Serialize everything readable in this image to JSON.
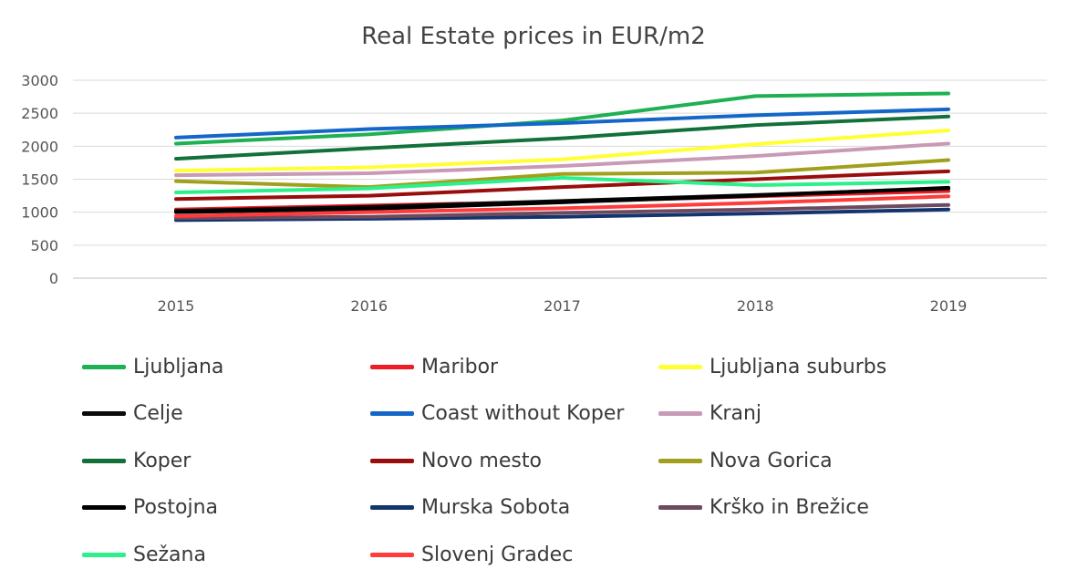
{
  "chart_data": {
    "type": "line",
    "title": "Real Estate prices in EUR/m2",
    "xlabel": "",
    "ylabel": "",
    "categories": [
      "2015",
      "2016",
      "2017",
      "2018",
      "2019"
    ],
    "ylim": [
      0,
      3000
    ],
    "yticks": [
      "3000",
      "2500",
      "2000",
      "1500",
      "1000",
      "500",
      "0"
    ],
    "grid": true,
    "legend_position": "bottom",
    "series": [
      {
        "name": "Ljubljana",
        "color": "#1eb052",
        "values": [
          2040,
          2180,
          2390,
          2760,
          2800
        ]
      },
      {
        "name": "Maribor",
        "color": "#ee1c24",
        "values": [
          1040,
          1100,
          1160,
          1240,
          1320
        ]
      },
      {
        "name": "Ljubljana suburbs",
        "color": "#ffff33",
        "values": [
          1630,
          1680,
          1800,
          2030,
          2240
        ]
      },
      {
        "name": "Celje",
        "color": "#0a0a0a",
        "values": [
          1020,
          1080,
          1170,
          1260,
          1360
        ]
      },
      {
        "name": "Coast without Koper",
        "color": "#1467c8",
        "values": [
          2130,
          2260,
          2350,
          2470,
          2560
        ]
      },
      {
        "name": "Kranj",
        "color": "#c89ab5",
        "values": [
          1560,
          1590,
          1700,
          1850,
          2040
        ]
      },
      {
        "name": "Koper",
        "color": "#12703a",
        "values": [
          1810,
          1970,
          2120,
          2320,
          2450
        ]
      },
      {
        "name": "Novo mesto",
        "color": "#9a0d0d",
        "values": [
          1200,
          1250,
          1380,
          1500,
          1620
        ]
      },
      {
        "name": "Nova Gorica",
        "color": "#a0a01c",
        "values": [
          1470,
          1380,
          1580,
          1600,
          1790
        ]
      },
      {
        "name": "Postojna",
        "color": "#000000",
        "values": [
          1000,
          1050,
          1150,
          1250,
          1370
        ]
      },
      {
        "name": "Murska Sobota",
        "color": "#14346e",
        "values": [
          880,
          900,
          930,
          980,
          1040
        ]
      },
      {
        "name": "Krško in Brežice",
        "color": "#6e4a5e",
        "values": [
          910,
          930,
          990,
          1040,
          1110
        ]
      },
      {
        "name": "Sežana",
        "color": "#2cf08a",
        "values": [
          1300,
          1360,
          1520,
          1410,
          1460
        ]
      },
      {
        "name": "Slovenj Gradec",
        "color": "#ff3b3b",
        "values": [
          940,
          1000,
          1060,
          1140,
          1240
        ]
      }
    ]
  }
}
